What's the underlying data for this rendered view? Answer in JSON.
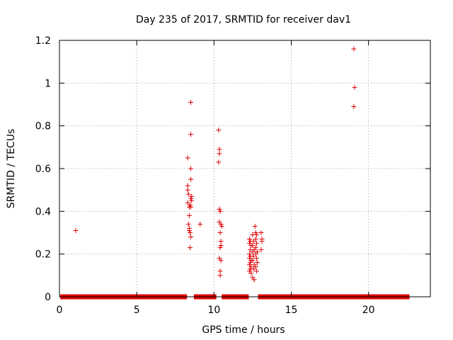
{
  "chart_data": {
    "type": "scatter",
    "title": "Day 235 of 2017, SRMTID for receiver dav1",
    "xlabel": "GPS time / hours",
    "ylabel": "SRMTID / TECUs",
    "xlim": [
      0,
      24
    ],
    "ylim": [
      0,
      1.2
    ],
    "xticks": [
      0,
      5,
      10,
      15,
      20
    ],
    "yticks": [
      0,
      0.2,
      0.4,
      0.6,
      0.8,
      1,
      1.2
    ],
    "xtick_labels": [
      "0",
      "5",
      "10",
      "15",
      "20"
    ],
    "ytick_labels": [
      "0",
      "0.2",
      "0.4",
      "0.6",
      "0.8",
      "1",
      "1.2"
    ],
    "grid": true,
    "marker": "plus",
    "color": "#dd0000",
    "series": [
      {
        "name": "SRMTID",
        "points": [
          [
            1.05,
            0.31
          ],
          [
            8.3,
            0.65
          ],
          [
            8.3,
            0.52
          ],
          [
            8.3,
            0.5
          ],
          [
            8.35,
            0.48
          ],
          [
            8.3,
            0.44
          ],
          [
            8.4,
            0.42
          ],
          [
            8.4,
            0.38
          ],
          [
            8.35,
            0.34
          ],
          [
            8.4,
            0.32
          ],
          [
            8.45,
            0.3
          ],
          [
            8.4,
            0.31
          ],
          [
            8.5,
            0.91
          ],
          [
            8.5,
            0.76
          ],
          [
            8.5,
            0.6
          ],
          [
            8.5,
            0.55
          ],
          [
            8.55,
            0.47
          ],
          [
            8.5,
            0.46
          ],
          [
            8.45,
            0.43
          ],
          [
            8.5,
            0.42
          ],
          [
            8.55,
            0.45
          ],
          [
            8.5,
            0.28
          ],
          [
            8.45,
            0.23
          ],
          [
            9.1,
            0.34
          ],
          [
            10.3,
            0.78
          ],
          [
            10.35,
            0.69
          ],
          [
            10.35,
            0.67
          ],
          [
            10.3,
            0.63
          ],
          [
            10.35,
            0.41
          ],
          [
            10.4,
            0.4
          ],
          [
            10.35,
            0.35
          ],
          [
            10.45,
            0.34
          ],
          [
            10.5,
            0.33
          ],
          [
            10.4,
            0.3
          ],
          [
            10.45,
            0.26
          ],
          [
            10.45,
            0.24
          ],
          [
            10.4,
            0.23
          ],
          [
            10.35,
            0.18
          ],
          [
            10.45,
            0.17
          ],
          [
            10.4,
            0.12
          ],
          [
            10.4,
            0.1
          ],
          [
            12.3,
            0.27
          ],
          [
            12.35,
            0.26
          ],
          [
            12.3,
            0.25
          ],
          [
            12.4,
            0.24
          ],
          [
            12.35,
            0.22
          ],
          [
            12.3,
            0.2
          ],
          [
            12.35,
            0.19
          ],
          [
            12.3,
            0.18
          ],
          [
            12.4,
            0.17
          ],
          [
            12.35,
            0.16
          ],
          [
            12.3,
            0.15
          ],
          [
            12.4,
            0.14
          ],
          [
            12.35,
            0.13
          ],
          [
            12.3,
            0.12
          ],
          [
            12.4,
            0.11
          ],
          [
            12.5,
            0.29
          ],
          [
            12.55,
            0.26
          ],
          [
            12.5,
            0.24
          ],
          [
            12.6,
            0.22
          ],
          [
            12.5,
            0.21
          ],
          [
            12.55,
            0.19
          ],
          [
            12.5,
            0.17
          ],
          [
            12.6,
            0.15
          ],
          [
            12.55,
            0.13
          ],
          [
            12.5,
            0.09
          ],
          [
            12.6,
            0.08
          ],
          [
            12.65,
            0.33
          ],
          [
            12.7,
            0.3
          ],
          [
            12.75,
            0.29
          ],
          [
            12.7,
            0.27
          ],
          [
            12.75,
            0.25
          ],
          [
            12.7,
            0.23
          ],
          [
            12.8,
            0.21
          ],
          [
            12.7,
            0.2
          ],
          [
            12.75,
            0.18
          ],
          [
            12.8,
            0.16
          ],
          [
            12.7,
            0.14
          ],
          [
            12.75,
            0.12
          ],
          [
            13.05,
            0.3
          ],
          [
            13.1,
            0.27
          ],
          [
            13.1,
            0.26
          ],
          [
            13.05,
            0.22
          ],
          [
            19.05,
            1.16
          ],
          [
            19.1,
            0.98
          ],
          [
            19.05,
            0.89
          ]
        ]
      }
    ],
    "baseline_segments": [
      [
        0.05,
        8.25
      ],
      [
        8.7,
        10.15
      ],
      [
        10.5,
        12.25
      ],
      [
        12.85,
        22.65
      ]
    ],
    "baseline_value": 0
  }
}
